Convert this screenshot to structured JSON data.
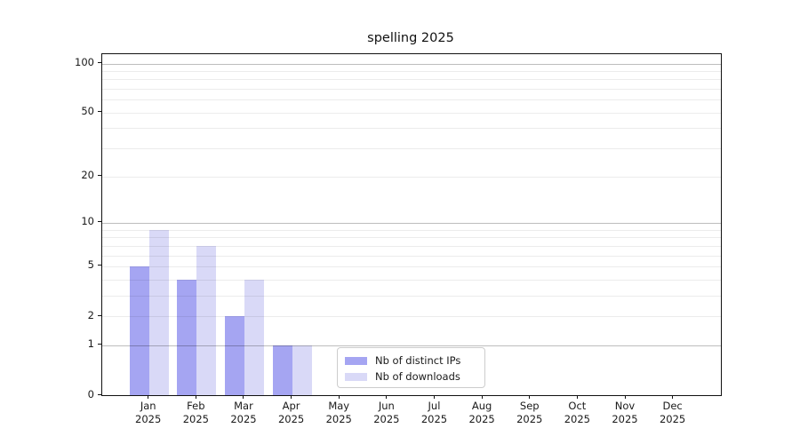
{
  "chart_data": {
    "type": "bar",
    "title": "spelling 2025",
    "categories": [
      "Jan",
      "Feb",
      "Mar",
      "Apr",
      "May",
      "Jun",
      "Jul",
      "Aug",
      "Sep",
      "Oct",
      "Nov",
      "Dec"
    ],
    "category_year": "2025",
    "series": [
      {
        "name": "Nb of distinct IPs",
        "color": "#a5a5f2",
        "values": [
          5,
          4,
          2,
          1,
          0,
          0,
          0,
          0,
          0,
          0,
          0,
          0
        ]
      },
      {
        "name": "Nb of downloads",
        "color": "#d9d9f7",
        "values": [
          9,
          7,
          4,
          1,
          0,
          0,
          0,
          0,
          0,
          0,
          0,
          0
        ]
      }
    ],
    "y_axis": {
      "scale": "log10(value+1)",
      "ticks": [
        0,
        1,
        2,
        5,
        10,
        20,
        50,
        100
      ],
      "max_value": 114,
      "major_gridlines": [
        1,
        10,
        100
      ],
      "minor_gridlines": [
        2,
        3,
        4,
        5,
        6,
        7,
        8,
        9,
        20,
        30,
        40,
        50,
        60,
        70,
        80,
        90
      ]
    },
    "x_axis": {
      "tick_years": "2025"
    },
    "legend": {
      "entries": [
        "Nb of distinct IPs",
        "Nb of downloads"
      ],
      "position": "lower center"
    },
    "grid": true,
    "ylim": [
      0,
      114
    ]
  },
  "colors": {
    "background": "#ffffff",
    "axis": "#111111",
    "text": "#1a1a1a",
    "major_grid": "rgba(0,0,0,0.26)",
    "minor_grid": "rgba(0,0,0,0.075)",
    "legend_border": "#cccccc"
  }
}
